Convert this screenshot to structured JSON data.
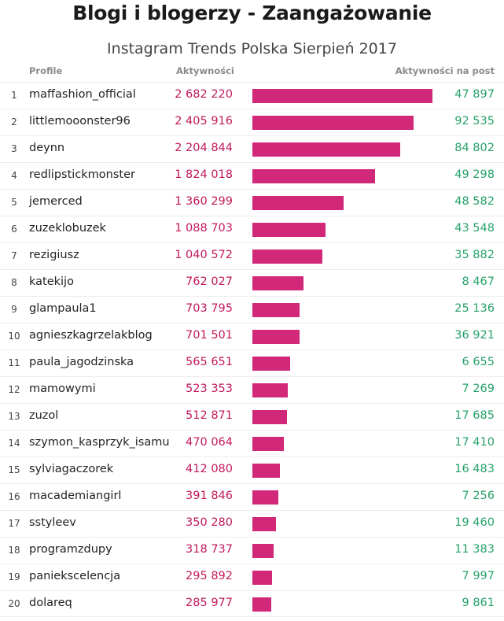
{
  "title": "Blogi i blogerzy - Zaangażowanie",
  "subtitle": "Instagram Trends Polska Sierpień 2017",
  "headers": {
    "profile": "Profile",
    "activity": "Aktywności",
    "per_post": "Aktywności na post"
  },
  "colors": {
    "bar": "#d1287a",
    "activity_text": "#c2185b",
    "per_post_text": "#26a269"
  },
  "chart_data": {
    "type": "bar",
    "orientation": "horizontal",
    "title": "Blogi i blogerzy - Zaangażowanie",
    "subtitle": "Instagram Trends Polska Sierpień 2017",
    "categories": [
      "maffashion_official",
      "littlemooonster96",
      "deynn",
      "redlipstickmonster",
      "jemerced",
      "zuzeklobuzek",
      "rezigiusz",
      "katekijo",
      "glampaula1",
      "agnieszkagrzelakblog",
      "paula_jagodzinska",
      "mamowymi",
      "zuzol",
      "szymon_kasprzyk_isamu",
      "sylviagaczorek",
      "macademiangirl",
      "sstyleev",
      "programzdupy",
      "paniekscelencja",
      "dolareq"
    ],
    "rows": [
      {
        "rank": "1",
        "profile": "maffashion_official",
        "activity": 2682220,
        "activity_label": "2 682 220",
        "per_post": 47897,
        "per_post_label": "47 897"
      },
      {
        "rank": "2",
        "profile": "littlemooonster96",
        "activity": 2405916,
        "activity_label": "2 405 916",
        "per_post": 92535,
        "per_post_label": "92 535"
      },
      {
        "rank": "3",
        "profile": "deynn",
        "activity": 2204844,
        "activity_label": "2 204 844",
        "per_post": 84802,
        "per_post_label": "84 802"
      },
      {
        "rank": "4",
        "profile": "redlipstickmonster",
        "activity": 1824018,
        "activity_label": "1 824 018",
        "per_post": 49298,
        "per_post_label": "49 298"
      },
      {
        "rank": "5",
        "profile": "jemerced",
        "activity": 1360299,
        "activity_label": "1 360 299",
        "per_post": 48582,
        "per_post_label": "48 582"
      },
      {
        "rank": "6",
        "profile": "zuzeklobuzek",
        "activity": 1088703,
        "activity_label": "1 088 703",
        "per_post": 43548,
        "per_post_label": "43 548"
      },
      {
        "rank": "7",
        "profile": "rezigiusz",
        "activity": 1040572,
        "activity_label": "1 040 572",
        "per_post": 35882,
        "per_post_label": "35 882"
      },
      {
        "rank": "8",
        "profile": "katekijo",
        "activity": 762027,
        "activity_label": "762 027",
        "per_post": 8467,
        "per_post_label": "8 467"
      },
      {
        "rank": "9",
        "profile": "glampaula1",
        "activity": 703795,
        "activity_label": "703 795",
        "per_post": 25136,
        "per_post_label": "25 136"
      },
      {
        "rank": "10",
        "profile": "agnieszkagrzelakblog",
        "activity": 701501,
        "activity_label": "701 501",
        "per_post": 36921,
        "per_post_label": "36 921"
      },
      {
        "rank": "11",
        "profile": "paula_jagodzinska",
        "activity": 565651,
        "activity_label": "565 651",
        "per_post": 6655,
        "per_post_label": "6 655"
      },
      {
        "rank": "12",
        "profile": "mamowymi",
        "activity": 523353,
        "activity_label": "523 353",
        "per_post": 7269,
        "per_post_label": "7 269"
      },
      {
        "rank": "13",
        "profile": "zuzol",
        "activity": 512871,
        "activity_label": "512 871",
        "per_post": 17685,
        "per_post_label": "17 685"
      },
      {
        "rank": "14",
        "profile": "szymon_kasprzyk_isamu",
        "activity": 470064,
        "activity_label": "470 064",
        "per_post": 17410,
        "per_post_label": "17 410"
      },
      {
        "rank": "15",
        "profile": "sylviagaczorek",
        "activity": 412080,
        "activity_label": "412 080",
        "per_post": 16483,
        "per_post_label": "16 483"
      },
      {
        "rank": "16",
        "profile": "macademiangirl",
        "activity": 391846,
        "activity_label": "391 846",
        "per_post": 7256,
        "per_post_label": "7 256"
      },
      {
        "rank": "17",
        "profile": "sstyleev",
        "activity": 350280,
        "activity_label": "350 280",
        "per_post": 19460,
        "per_post_label": "19 460"
      },
      {
        "rank": "18",
        "profile": "programzdupy",
        "activity": 318737,
        "activity_label": "318 737",
        "per_post": 11383,
        "per_post_label": "11 383"
      },
      {
        "rank": "19",
        "profile": "paniekscelencja",
        "activity": 295892,
        "activity_label": "295 892",
        "per_post": 7997,
        "per_post_label": "7 997"
      },
      {
        "rank": "20",
        "profile": "dolareq",
        "activity": 285977,
        "activity_label": "285 977",
        "per_post": 9861,
        "per_post_label": "9 861"
      }
    ],
    "xlim": [
      0,
      2682220
    ],
    "grid": false,
    "legend": "none"
  }
}
